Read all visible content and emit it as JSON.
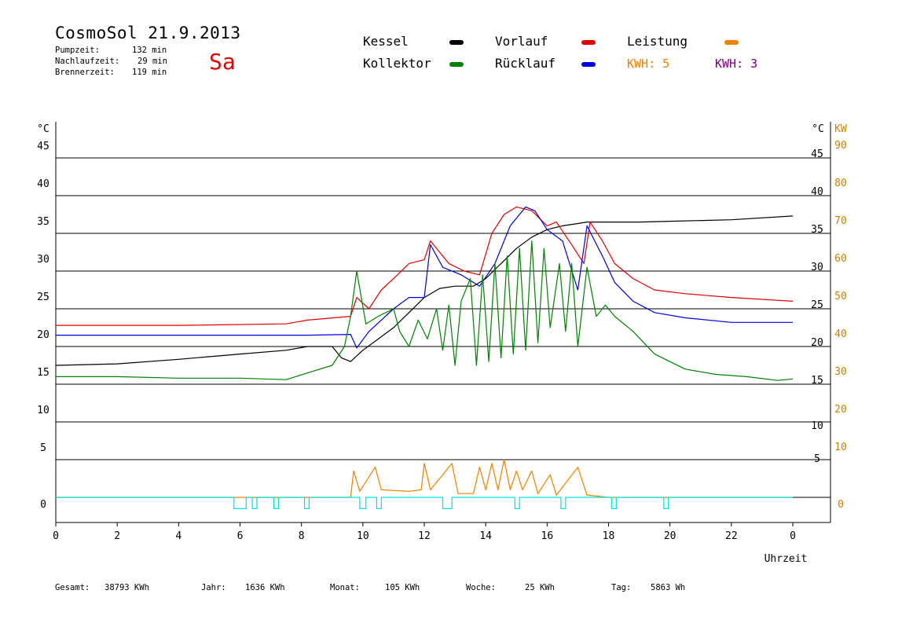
{
  "header": {
    "title": "CosmoSol 21.9.2013",
    "weekday": "Sa",
    "pump_label": "Pumpzeit:",
    "pump_value": "132 min",
    "nach_label": "Nachlaufzeit:",
    "nach_value": "29 min",
    "brenner_label": "Brennerzeit:",
    "brenner_value": "119 min"
  },
  "legend": {
    "kessel": "Kessel",
    "kollektor": "Kollektor",
    "vorlauf": "Vorlauf",
    "ruecklauf": "Rücklauf",
    "leistung": "Leistung",
    "kwh1": "KWH: 5",
    "kwh2": "KWH: 3"
  },
  "colors": {
    "kessel": "#000000",
    "kollektor": "#008000",
    "vorlauf": "#e00000",
    "ruecklauf": "#0000e0",
    "leistung": "#f08000",
    "kwh2": "#800080",
    "pump": "#00e0e0"
  },
  "footer": {
    "gesamt_label": "Gesamt:",
    "gesamt_value": "38793 KWh",
    "jahr_label": "Jahr:",
    "jahr_value": "1636 KWh",
    "monat_label": "Monat:",
    "monat_value": "105 KWh",
    "woche_label": "Woche:",
    "woche_value": "25 KWh",
    "tag_label": "Tag:",
    "tag_value": "5863 Wh"
  },
  "chart_data": {
    "type": "line",
    "xlabel": "Uhrzeit",
    "ylabel_left": "°C",
    "ylabel_right": "°C",
    "ylabel_right2": "KW",
    "x_ticks": [
      "0",
      "2",
      "4",
      "6",
      "8",
      "10",
      "12",
      "14",
      "16",
      "18",
      "20",
      "22",
      "0"
    ],
    "y_ticks": [
      0,
      5,
      10,
      15,
      20,
      25,
      30,
      35,
      40,
      45
    ],
    "kw_ticks": [
      "0",
      "10",
      "20",
      "30",
      "40",
      "50",
      "60",
      "70",
      "80",
      "90"
    ],
    "xlim": [
      0,
      24
    ],
    "ylim": [
      -3,
      49
    ],
    "grid": true,
    "series": [
      {
        "name": "Kessel",
        "key": "kessel",
        "points": [
          [
            0,
            17.5
          ],
          [
            2,
            17.7
          ],
          [
            4,
            18.3
          ],
          [
            6,
            19.0
          ],
          [
            7.5,
            19.5
          ],
          [
            8.2,
            20.0
          ],
          [
            9,
            20.0
          ],
          [
            9.3,
            18.5
          ],
          [
            9.6,
            18.0
          ],
          [
            10,
            19.5
          ],
          [
            10.5,
            21.0
          ],
          [
            11,
            22.5
          ],
          [
            11.5,
            24.5
          ],
          [
            12,
            26.5
          ],
          [
            12.5,
            27.7
          ],
          [
            13,
            28.0
          ],
          [
            13.6,
            28.0
          ],
          [
            14,
            29.0
          ],
          [
            14.5,
            31.0
          ],
          [
            15,
            33.0
          ],
          [
            15.5,
            34.5
          ],
          [
            16,
            35.5
          ],
          [
            16.5,
            36.0
          ],
          [
            17,
            36.3
          ],
          [
            17.3,
            36.5
          ],
          [
            19,
            36.5
          ],
          [
            20,
            36.6
          ],
          [
            22,
            36.8
          ],
          [
            24,
            37.3
          ]
        ]
      },
      {
        "name": "Vorlauf",
        "key": "vorlauf",
        "points": [
          [
            0,
            22.8
          ],
          [
            4,
            22.8
          ],
          [
            7.5,
            23.0
          ],
          [
            8.2,
            23.5
          ],
          [
            9.6,
            24.0
          ],
          [
            9.8,
            26.5
          ],
          [
            10.2,
            25.0
          ],
          [
            10.6,
            27.5
          ],
          [
            11,
            29.0
          ],
          [
            11.5,
            31.0
          ],
          [
            12,
            31.5
          ],
          [
            12.2,
            34.0
          ],
          [
            12.8,
            31.0
          ],
          [
            13.3,
            30.0
          ],
          [
            13.8,
            29.5
          ],
          [
            14.2,
            35.0
          ],
          [
            14.6,
            37.5
          ],
          [
            15,
            38.5
          ],
          [
            15.5,
            38.0
          ],
          [
            16,
            36.0
          ],
          [
            16.3,
            36.5
          ],
          [
            16.8,
            33.5
          ],
          [
            17.2,
            31.0
          ],
          [
            17.4,
            36.5
          ],
          [
            17.8,
            34.0
          ],
          [
            18.2,
            31.0
          ],
          [
            18.8,
            29.0
          ],
          [
            19.5,
            27.5
          ],
          [
            20.5,
            27.0
          ],
          [
            22,
            26.5
          ],
          [
            24,
            26.0
          ]
        ]
      },
      {
        "name": "Rücklauf",
        "key": "ruecklauf",
        "points": [
          [
            0,
            21.5
          ],
          [
            4,
            21.5
          ],
          [
            8.2,
            21.5
          ],
          [
            9.6,
            21.6
          ],
          [
            9.8,
            19.8
          ],
          [
            10.2,
            22.0
          ],
          [
            10.6,
            23.5
          ],
          [
            11,
            25.0
          ],
          [
            11.5,
            26.5
          ],
          [
            12,
            26.5
          ],
          [
            12.2,
            33.5
          ],
          [
            12.6,
            30.5
          ],
          [
            13.2,
            29.5
          ],
          [
            13.8,
            28.0
          ],
          [
            14.3,
            31.0
          ],
          [
            14.8,
            36.0
          ],
          [
            15.3,
            38.5
          ],
          [
            15.6,
            38.0
          ],
          [
            16,
            35.5
          ],
          [
            16.5,
            34.0
          ],
          [
            17,
            27.5
          ],
          [
            17.3,
            36.0
          ],
          [
            17.8,
            32.0
          ],
          [
            18.2,
            28.5
          ],
          [
            18.8,
            26.0
          ],
          [
            19.5,
            24.5
          ],
          [
            20.5,
            23.8
          ],
          [
            22,
            23.2
          ],
          [
            24,
            23.2
          ]
        ]
      },
      {
        "name": "Kollektor",
        "key": "kollektor",
        "points": [
          [
            0,
            16.0
          ],
          [
            2,
            16.0
          ],
          [
            4,
            15.8
          ],
          [
            6,
            15.8
          ],
          [
            7.5,
            15.6
          ],
          [
            8.2,
            16.5
          ],
          [
            9,
            17.5
          ],
          [
            9.4,
            20.0
          ],
          [
            9.6,
            24.0
          ],
          [
            9.8,
            30.0
          ],
          [
            10.1,
            23.0
          ],
          [
            10.5,
            24.0
          ],
          [
            11,
            25.0
          ],
          [
            11.2,
            22.0
          ],
          [
            11.5,
            20.0
          ],
          [
            11.8,
            23.5
          ],
          [
            12.1,
            21.0
          ],
          [
            12.4,
            25.0
          ],
          [
            12.6,
            19.5
          ],
          [
            12.8,
            25.5
          ],
          [
            13,
            17.5
          ],
          [
            13.2,
            26.0
          ],
          [
            13.5,
            29.0
          ],
          [
            13.7,
            17.5
          ],
          [
            13.9,
            29.5
          ],
          [
            14.1,
            18.0
          ],
          [
            14.3,
            31.0
          ],
          [
            14.5,
            18.5
          ],
          [
            14.7,
            32.0
          ],
          [
            14.9,
            19.0
          ],
          [
            15.1,
            33.0
          ],
          [
            15.3,
            19.5
          ],
          [
            15.5,
            34.0
          ],
          [
            15.7,
            20.5
          ],
          [
            15.9,
            33.0
          ],
          [
            16.1,
            22.5
          ],
          [
            16.4,
            31.0
          ],
          [
            16.6,
            22.0
          ],
          [
            16.8,
            31.0
          ],
          [
            17.0,
            20.0
          ],
          [
            17.3,
            30.5
          ],
          [
            17.6,
            24.0
          ],
          [
            17.9,
            25.5
          ],
          [
            18.2,
            24.0
          ],
          [
            18.8,
            22.0
          ],
          [
            19.5,
            19.0
          ],
          [
            20.5,
            17.0
          ],
          [
            21.5,
            16.3
          ],
          [
            22.5,
            16.0
          ],
          [
            23.5,
            15.5
          ],
          [
            24,
            15.7
          ]
        ]
      },
      {
        "name": "Leistung",
        "key": "leistung",
        "points": [
          [
            0,
            0
          ],
          [
            9.6,
            0
          ],
          [
            9.7,
            3.5
          ],
          [
            9.9,
            0.8
          ],
          [
            10.4,
            4.0
          ],
          [
            10.6,
            1.0
          ],
          [
            11.5,
            0.8
          ],
          [
            11.9,
            1.0
          ],
          [
            12.0,
            4.5
          ],
          [
            12.2,
            1.0
          ],
          [
            12.6,
            3.0
          ],
          [
            12.9,
            4.5
          ],
          [
            13.1,
            0.5
          ],
          [
            13.6,
            0.5
          ],
          [
            13.8,
            4.0
          ],
          [
            14.0,
            1.0
          ],
          [
            14.2,
            4.5
          ],
          [
            14.4,
            1.0
          ],
          [
            14.6,
            5.0
          ],
          [
            14.8,
            1.0
          ],
          [
            15.0,
            3.5
          ],
          [
            15.2,
            1.0
          ],
          [
            15.5,
            3.5
          ],
          [
            15.7,
            0.5
          ],
          [
            16.1,
            3.0
          ],
          [
            16.3,
            0.3
          ],
          [
            17.0,
            4.0
          ],
          [
            17.3,
            0.3
          ],
          [
            18,
            0
          ],
          [
            24,
            0
          ]
        ]
      },
      {
        "name": "Pumpe",
        "key": "pump",
        "points": [
          [
            0,
            0
          ],
          [
            5.8,
            0
          ],
          [
            5.8,
            -1.5
          ],
          [
            6.2,
            -1.5
          ],
          [
            6.2,
            0
          ],
          [
            6.4,
            0
          ],
          [
            6.4,
            -1.5
          ],
          [
            6.55,
            -1.5
          ],
          [
            6.55,
            0
          ],
          [
            7.1,
            0
          ],
          [
            7.1,
            -1.5
          ],
          [
            7.25,
            -1.5
          ],
          [
            7.25,
            0
          ],
          [
            8.1,
            0
          ],
          [
            8.1,
            -1.5
          ],
          [
            8.25,
            -1.5
          ],
          [
            8.25,
            0
          ],
          [
            9.9,
            0
          ],
          [
            9.9,
            -1.5
          ],
          [
            10.1,
            -1.5
          ],
          [
            10.1,
            0
          ],
          [
            10.45,
            0
          ],
          [
            10.45,
            -1.5
          ],
          [
            10.6,
            -1.5
          ],
          [
            10.6,
            0
          ],
          [
            12.6,
            0
          ],
          [
            12.6,
            -1.5
          ],
          [
            12.9,
            -1.5
          ],
          [
            12.9,
            0
          ],
          [
            14.95,
            0
          ],
          [
            14.95,
            -1.5
          ],
          [
            15.1,
            -1.5
          ],
          [
            15.1,
            0
          ],
          [
            16.45,
            0
          ],
          [
            16.45,
            -1.5
          ],
          [
            16.6,
            -1.5
          ],
          [
            16.6,
            0
          ],
          [
            18.1,
            0
          ],
          [
            18.1,
            -1.5
          ],
          [
            18.25,
            -1.5
          ],
          [
            18.25,
            0
          ],
          [
            19.8,
            0
          ],
          [
            19.8,
            -1.5
          ],
          [
            19.95,
            -1.5
          ],
          [
            19.95,
            0
          ],
          [
            24,
            0
          ]
        ]
      }
    ]
  }
}
